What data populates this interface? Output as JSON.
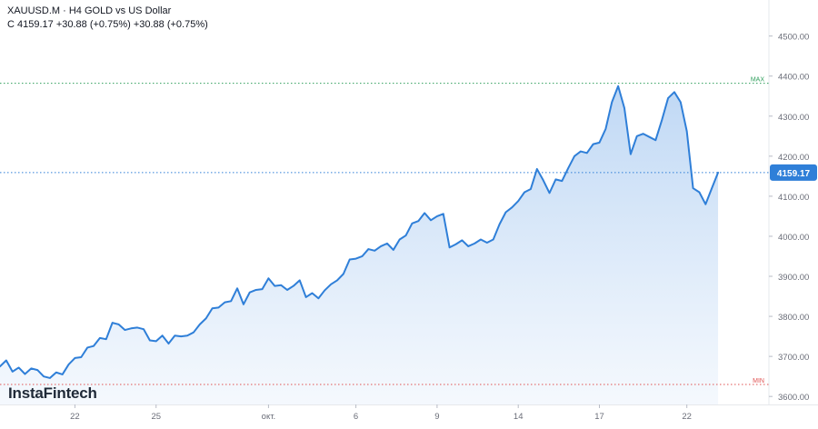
{
  "header": {
    "title": "XAUUSD.M · H4 GOLD vs US Dollar",
    "quote": "C 4159.17 +30.88 (+0.75%) +30.88 (+0.75%)"
  },
  "brand": "InstaFintech",
  "colors": {
    "line": "#2f7fd8",
    "fill_top": "#bcd6f4",
    "fill_bottom": "#f2f7fd",
    "max": "#2e9e5b",
    "min": "#e05252",
    "price_dotted": "#2f7fd8",
    "axis_text": "#6a6d78",
    "last_tag_bg": "#2f7fd8"
  },
  "chart_data": {
    "type": "area",
    "ylim": [
      3580,
      4590
    ],
    "yticks": [
      "3600.00",
      "3700.00",
      "3800.00",
      "3900.00",
      "4000.00",
      "4100.00",
      "4200.00",
      "4300.00",
      "4400.00",
      "4500.00"
    ],
    "yticks_values": [
      3600,
      3700,
      3800,
      3900,
      4000,
      4100,
      4200,
      4300,
      4400,
      4500
    ],
    "xticks": [
      "22",
      "25",
      "окт.",
      "6",
      "9",
      "14",
      "17",
      "22"
    ],
    "xticks_index": [
      12,
      25,
      43,
      57,
      70,
      83,
      96,
      110
    ],
    "xlim": [
      0,
      123
    ],
    "max": {
      "label": "MAX",
      "value": 4382
    },
    "min": {
      "label": "MIN",
      "value": 3630
    },
    "last": {
      "label": "4159.17",
      "value": 4159.17
    },
    "series": [
      {
        "values": [
          3675,
          3690,
          3662,
          3672,
          3656,
          3670,
          3666,
          3650,
          3646,
          3660,
          3655,
          3680,
          3696,
          3698,
          3722,
          3726,
          3746,
          3743,
          3784,
          3780,
          3766,
          3770,
          3772,
          3768,
          3740,
          3738,
          3752,
          3732,
          3752,
          3750,
          3752,
          3760,
          3780,
          3795,
          3820,
          3822,
          3835,
          3838,
          3870,
          3830,
          3860,
          3866,
          3868,
          3895,
          3876,
          3878,
          3866,
          3876,
          3890,
          3848,
          3858,
          3845,
          3865,
          3880,
          3890,
          3906,
          3942,
          3944,
          3950,
          3968,
          3964,
          3975,
          3982,
          3966,
          3992,
          4002,
          4032,
          4038,
          4058,
          4040,
          4050,
          4056,
          3972,
          3980,
          3990,
          3975,
          3982,
          3992,
          3984,
          3992,
          4030,
          4060,
          4072,
          4088,
          4110,
          4118,
          4168,
          4140,
          4108,
          4142,
          4138,
          4170,
          4200,
          4212,
          4208,
          4230,
          4234,
          4268,
          4335,
          4375,
          4320,
          4205,
          4250,
          4256,
          4248,
          4240,
          4290,
          4345,
          4360,
          4335,
          4262,
          4120,
          4110,
          4080,
          4120,
          4159
        ]
      }
    ]
  }
}
